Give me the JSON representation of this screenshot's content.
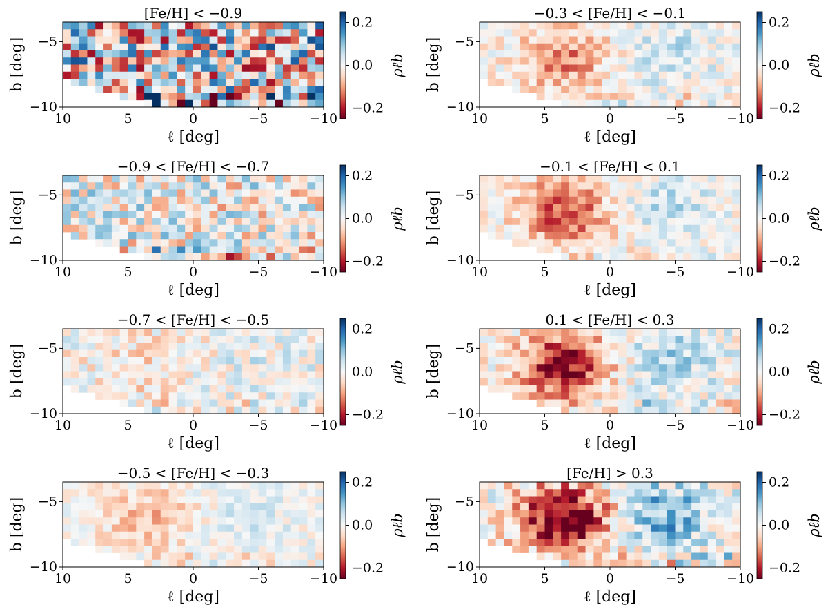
{
  "figure": {
    "grid": "4 rows x 2 columns",
    "colormap": "RdBu",
    "colormap_stops": [
      "#67001f",
      "#b2182b",
      "#d6604d",
      "#f4a582",
      "#fddbc7",
      "#f7f7f7",
      "#d1e5f0",
      "#92c5de",
      "#4393c3",
      "#2166ac",
      "#053061"
    ]
  },
  "chart_data": [
    {
      "type": "heatmap",
      "title": "[Fe/H] < −0.9",
      "xlabel": "ℓ [deg]",
      "ylabel": "b [deg]",
      "colorbar_label": "ρℓb",
      "xlim": [
        10,
        -10
      ],
      "ylim": [
        -10,
        -3.5
      ],
      "clim": [
        -0.25,
        0.25
      ],
      "xticks": [
        10,
        5,
        0,
        -5,
        -10
      ],
      "xtick_labels": [
        "10",
        "5",
        "0",
        "−5",
        "−10"
      ],
      "yticks": [
        -5,
        -10
      ],
      "ytick_labels": [
        "−5",
        "−10"
      ],
      "cbar_ticks": [
        0.2,
        0.0,
        -0.2
      ],
      "cbar_tick_labels": [
        "0.2",
        "0.0",
        "−0.2"
      ],
      "pattern": {
        "noise": 0.22,
        "red_lobe": 0.0,
        "blue_lobe": 0.0
      }
    },
    {
      "type": "heatmap",
      "title": "−0.3 < [Fe/H] < −0.1",
      "xlabel": "ℓ [deg]",
      "ylabel": "b [deg]",
      "colorbar_label": "ρℓb",
      "xlim": [
        10,
        -10
      ],
      "ylim": [
        -10,
        -3.5
      ],
      "clim": [
        -0.25,
        0.25
      ],
      "xticks": [
        10,
        5,
        0,
        -5,
        -10
      ],
      "xtick_labels": [
        "10",
        "5",
        "0",
        "−5",
        "−10"
      ],
      "yticks": [
        -5,
        -10
      ],
      "ytick_labels": [
        "−5",
        "−10"
      ],
      "cbar_ticks": [
        0.2,
        0.0,
        -0.2
      ],
      "cbar_tick_labels": [
        "0.2",
        "0.0",
        "−0.2"
      ],
      "pattern": {
        "noise": 0.06,
        "red_lobe": 0.12,
        "blue_lobe": 0.05
      }
    },
    {
      "type": "heatmap",
      "title": "−0.9 < [Fe/H] < −0.7",
      "xlabel": "ℓ [deg]",
      "ylabel": "b [deg]",
      "colorbar_label": "ρℓb",
      "xlim": [
        10,
        -10
      ],
      "ylim": [
        -10,
        -3.5
      ],
      "clim": [
        -0.25,
        0.25
      ],
      "xticks": [
        10,
        5,
        0,
        -5,
        -10
      ],
      "xtick_labels": [
        "10",
        "5",
        "0",
        "−5",
        "−10"
      ],
      "yticks": [
        -5,
        -10
      ],
      "ytick_labels": [
        "−5",
        "−10"
      ],
      "cbar_ticks": [
        0.2,
        0.0,
        -0.2
      ],
      "cbar_tick_labels": [
        "0.2",
        "0.0",
        "−0.2"
      ],
      "pattern": {
        "noise": 0.12,
        "red_lobe": 0.0,
        "blue_lobe": 0.0
      }
    },
    {
      "type": "heatmap",
      "title": "−0.1 < [Fe/H] < 0.1",
      "xlabel": "ℓ [deg]",
      "ylabel": "b [deg]",
      "colorbar_label": "ρℓb",
      "xlim": [
        10,
        -10
      ],
      "ylim": [
        -10,
        -3.5
      ],
      "clim": [
        -0.25,
        0.25
      ],
      "xticks": [
        10,
        5,
        0,
        -5,
        -10
      ],
      "xtick_labels": [
        "10",
        "5",
        "0",
        "−5",
        "−10"
      ],
      "yticks": [
        -5,
        -10
      ],
      "ytick_labels": [
        "−5",
        "−10"
      ],
      "cbar_ticks": [
        0.2,
        0.0,
        -0.2
      ],
      "cbar_tick_labels": [
        "0.2",
        "0.0",
        "−0.2"
      ],
      "pattern": {
        "noise": 0.06,
        "red_lobe": 0.17,
        "blue_lobe": 0.06
      }
    },
    {
      "type": "heatmap",
      "title": "−0.7 < [Fe/H] < −0.5",
      "xlabel": "ℓ [deg]",
      "ylabel": "b [deg]",
      "colorbar_label": "ρℓb",
      "xlim": [
        10,
        -10
      ],
      "ylim": [
        -10,
        -3.5
      ],
      "clim": [
        -0.25,
        0.25
      ],
      "xticks": [
        10,
        5,
        0,
        -5,
        -10
      ],
      "xtick_labels": [
        "10",
        "5",
        "0",
        "−5",
        "−10"
      ],
      "yticks": [
        -5,
        -10
      ],
      "ytick_labels": [
        "−5",
        "−10"
      ],
      "cbar_ticks": [
        0.2,
        0.0,
        -0.2
      ],
      "cbar_tick_labels": [
        "0.2",
        "0.0",
        "−0.2"
      ],
      "pattern": {
        "noise": 0.07,
        "red_lobe": 0.04,
        "blue_lobe": 0.02
      }
    },
    {
      "type": "heatmap",
      "title": "0.1 < [Fe/H] < 0.3",
      "xlabel": "ℓ [deg]",
      "ylabel": "b [deg]",
      "colorbar_label": "ρℓb",
      "xlim": [
        10,
        -10
      ],
      "ylim": [
        -10,
        -3.5
      ],
      "clim": [
        -0.25,
        0.25
      ],
      "xticks": [
        10,
        5,
        0,
        -5,
        -10
      ],
      "xtick_labels": [
        "10",
        "5",
        "0",
        "−5",
        "−10"
      ],
      "yticks": [
        -5,
        -10
      ],
      "ytick_labels": [
        "−5",
        "−10"
      ],
      "cbar_ticks": [
        0.2,
        0.0,
        -0.2
      ],
      "cbar_tick_labels": [
        "0.2",
        "0.0",
        "−0.2"
      ],
      "pattern": {
        "noise": 0.07,
        "red_lobe": 0.22,
        "blue_lobe": 0.08
      }
    },
    {
      "type": "heatmap",
      "title": "−0.5 < [Fe/H] < −0.3",
      "xlabel": "ℓ [deg]",
      "ylabel": "b [deg]",
      "colorbar_label": "ρℓb",
      "xlim": [
        10,
        -10
      ],
      "ylim": [
        -10,
        -3.5
      ],
      "clim": [
        -0.25,
        0.25
      ],
      "xticks": [
        10,
        5,
        0,
        -5,
        -10
      ],
      "xtick_labels": [
        "10",
        "5",
        "0",
        "−5",
        "−10"
      ],
      "yticks": [
        -5,
        -10
      ],
      "ytick_labels": [
        "−5",
        "−10"
      ],
      "cbar_ticks": [
        0.2,
        0.0,
        -0.2
      ],
      "cbar_tick_labels": [
        "0.2",
        "0.0",
        "−0.2"
      ],
      "pattern": {
        "noise": 0.05,
        "red_lobe": 0.08,
        "blue_lobe": 0.03
      }
    },
    {
      "type": "heatmap",
      "title": "[Fe/H] > 0.3",
      "xlabel": "ℓ [deg]",
      "ylabel": "b [deg]",
      "colorbar_label": "ρℓb",
      "xlim": [
        10,
        -10
      ],
      "ylim": [
        -10,
        -3.5
      ],
      "clim": [
        -0.25,
        0.25
      ],
      "xticks": [
        10,
        5,
        0,
        -5,
        -10
      ],
      "xtick_labels": [
        "10",
        "5",
        "0",
        "−5",
        "−10"
      ],
      "yticks": [
        -5,
        -10
      ],
      "ytick_labels": [
        "−5",
        "−10"
      ],
      "cbar_ticks": [
        0.2,
        0.0,
        -0.2
      ],
      "cbar_tick_labels": [
        "0.2",
        "0.0",
        "−0.2"
      ],
      "pattern": {
        "noise": 0.09,
        "red_lobe": 0.26,
        "blue_lobe": 0.13
      }
    }
  ]
}
